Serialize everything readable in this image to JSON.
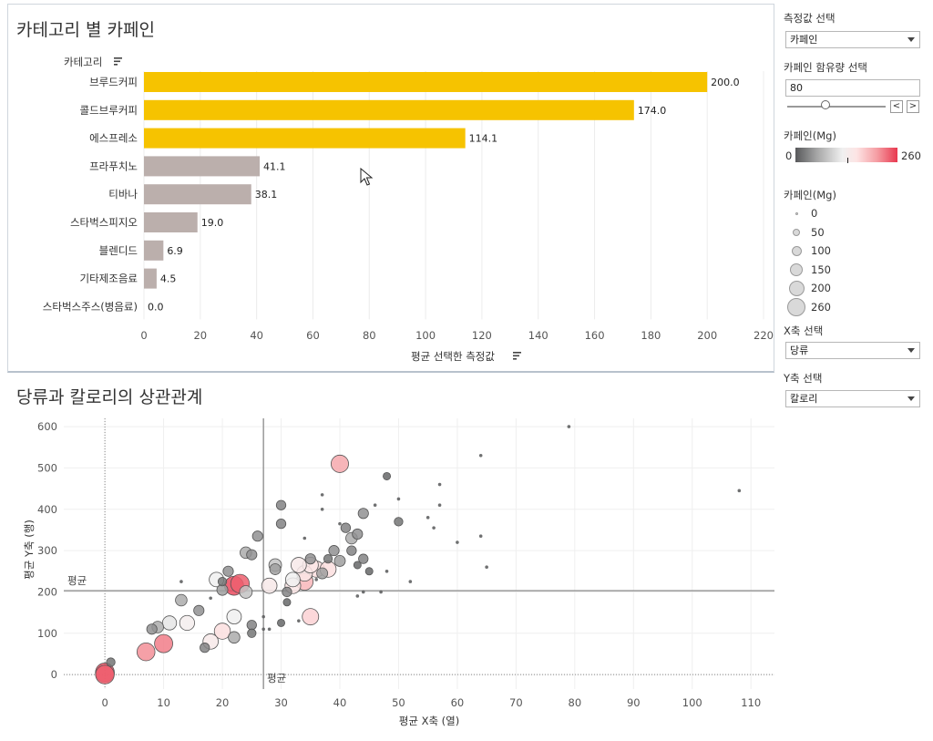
{
  "bar_section": {
    "title": "카테고리 별 카페인",
    "header": "카테고리",
    "footer": "평균 선택한 측정값"
  },
  "scatter_section": {
    "title": "당류과 칼로리의 상관관계",
    "avg_label_h": "평균",
    "avg_label_v": "평균"
  },
  "controls": {
    "measure_label": "측정값 선택",
    "measure_value": "카페인",
    "caffeine_amount_label": "카페인 함유량 선택",
    "caffeine_amount_value": "80",
    "caffeine_amount_range": [
      0,
      260
    ],
    "step_prev": "<",
    "step_next": ">",
    "color_legend_title": "카페인(Mg)",
    "color_legend_min": "0",
    "color_legend_max": "260",
    "size_legend_title": "카페인(Mg)",
    "size_legend_items": [
      "0",
      "50",
      "100",
      "150",
      "200",
      "260"
    ],
    "x_select_label": "X축 선택",
    "x_select_value": "당류",
    "y_select_label": "Y축 선택",
    "y_select_value": "칼로리"
  },
  "colors": {
    "highlight": "#f6c300",
    "muted": "#bbafac",
    "bubble_high": "#e8384f",
    "bubble_low": "#58595b"
  },
  "chart_data": [
    {
      "type": "bar",
      "orientation": "horizontal",
      "title": "카테고리 별 카페인",
      "ylabel": "카테고리",
      "xlabel": "평균 선택한 측정값",
      "categories": [
        "브루드커피",
        "콜드브루커피",
        "에스프레소",
        "프라푸치노",
        "티바나",
        "스타벅스피지오",
        "블렌디드",
        "기타제조음료",
        "스타벅스주스(병음료)"
      ],
      "values": [
        200.0,
        174.0,
        114.1,
        41.1,
        38.1,
        19.0,
        6.9,
        4.5,
        0.0
      ],
      "value_labels": [
        "200.0",
        "174.0",
        "114.1",
        "41.1",
        "38.1",
        "19.0",
        "6.9",
        "4.5",
        "0.0"
      ],
      "highlighted": [
        true,
        true,
        true,
        false,
        false,
        false,
        false,
        false,
        false
      ],
      "xlim": [
        0,
        220
      ],
      "xticks": [
        0,
        20,
        40,
        60,
        80,
        100,
        120,
        140,
        160,
        180,
        200,
        220
      ]
    },
    {
      "type": "scatter",
      "title": "당류과 칼로리의 상관관계",
      "xlabel": "평균 X축 (열)",
      "ylabel": "평균 Y축 (행)",
      "xlim": [
        -7,
        114
      ],
      "ylim": [
        -35,
        620
      ],
      "xticks": [
        0,
        10,
        20,
        30,
        40,
        50,
        60,
        70,
        80,
        90,
        100,
        110
      ],
      "yticks": [
        0,
        100,
        200,
        300,
        400,
        500,
        600
      ],
      "avg_x": 27,
      "avg_y": 203,
      "ref_zero_x": 0,
      "ref_zero_y": 0,
      "points": [
        [
          0,
          5,
          250
        ],
        [
          0,
          0,
          240
        ],
        [
          1,
          30,
          20
        ],
        [
          7,
          55,
          215
        ],
        [
          10,
          75,
          225
        ],
        [
          8,
          110,
          40
        ],
        [
          9,
          115,
          60
        ],
        [
          11,
          125,
          110
        ],
        [
          13,
          180,
          60
        ],
        [
          14,
          125,
          130
        ],
        [
          16,
          155,
          40
        ],
        [
          17,
          65,
          30
        ],
        [
          18,
          80,
          140
        ],
        [
          19,
          230,
          120
        ],
        [
          20,
          205,
          50
        ],
        [
          20,
          105,
          160
        ],
        [
          21,
          250,
          40
        ],
        [
          22,
          215,
          250
        ],
        [
          23,
          220,
          240
        ],
        [
          22,
          140,
          120
        ],
        [
          22,
          90,
          60
        ],
        [
          24,
          200,
          80
        ],
        [
          24,
          295,
          60
        ],
        [
          25,
          290,
          40
        ],
        [
          25,
          120,
          30
        ],
        [
          25,
          100,
          20
        ],
        [
          26,
          335,
          40
        ],
        [
          27,
          110,
          5
        ],
        [
          28,
          215,
          140
        ],
        [
          29,
          265,
          80
        ],
        [
          29,
          255,
          50
        ],
        [
          30,
          365,
          30
        ],
        [
          30,
          410,
          30
        ],
        [
          30,
          125,
          10
        ],
        [
          31,
          200,
          30
        ],
        [
          31,
          175,
          10
        ],
        [
          32,
          215,
          150
        ],
        [
          32,
          230,
          120
        ],
        [
          33,
          265,
          140
        ],
        [
          34,
          225,
          190
        ],
        [
          34,
          245,
          150
        ],
        [
          35,
          140,
          170
        ],
        [
          35,
          265,
          150
        ],
        [
          35,
          280,
          40
        ],
        [
          36,
          255,
          160
        ],
        [
          37,
          245,
          50
        ],
        [
          37,
          435,
          5
        ],
        [
          38,
          255,
          160
        ],
        [
          38,
          280,
          20
        ],
        [
          39,
          300,
          40
        ],
        [
          40,
          275,
          50
        ],
        [
          40,
          510,
          200
        ],
        [
          40,
          365,
          5
        ],
        [
          41,
          355,
          30
        ],
        [
          42,
          330,
          60
        ],
        [
          42,
          300,
          30
        ],
        [
          43,
          265,
          10
        ],
        [
          43,
          340,
          40
        ],
        [
          44,
          280,
          30
        ],
        [
          44,
          390,
          40
        ],
        [
          45,
          250,
          10
        ],
        [
          46,
          410,
          5
        ],
        [
          47,
          200,
          5
        ],
        [
          48,
          480,
          10
        ],
        [
          48,
          250,
          5
        ],
        [
          50,
          370,
          20
        ],
        [
          50,
          425,
          5
        ],
        [
          52,
          225,
          5
        ],
        [
          55,
          380,
          5
        ],
        [
          56,
          355,
          5
        ],
        [
          57,
          460,
          5
        ],
        [
          57,
          410,
          5
        ],
        [
          60,
          320,
          5
        ],
        [
          64,
          530,
          5
        ],
        [
          64,
          335,
          5
        ],
        [
          65,
          260,
          5
        ],
        [
          79,
          600,
          5
        ],
        [
          108,
          445,
          5
        ],
        [
          20,
          225,
          20
        ],
        [
          36,
          230,
          5
        ],
        [
          43,
          190,
          5
        ],
        [
          44,
          200,
          5
        ],
        [
          27,
          140,
          5
        ],
        [
          37,
          400,
          5
        ],
        [
          34,
          330,
          5
        ],
        [
          28,
          110,
          5
        ],
        [
          33,
          130,
          5
        ],
        [
          13,
          225,
          5
        ],
        [
          18,
          185,
          5
        ]
      ]
    }
  ]
}
